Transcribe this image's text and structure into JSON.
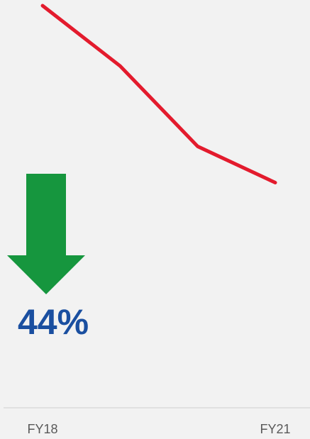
{
  "chart_data": {
    "type": "line",
    "categories": [
      "FY18",
      null,
      null,
      "FY21"
    ],
    "values": [
      100,
      85,
      65,
      56
    ],
    "color": "#e31b2d",
    "ylim": [
      0,
      100
    ],
    "annotation": "44%",
    "annotation_color": "#1a4fa0",
    "arrow_color": "#16963e"
  }
}
